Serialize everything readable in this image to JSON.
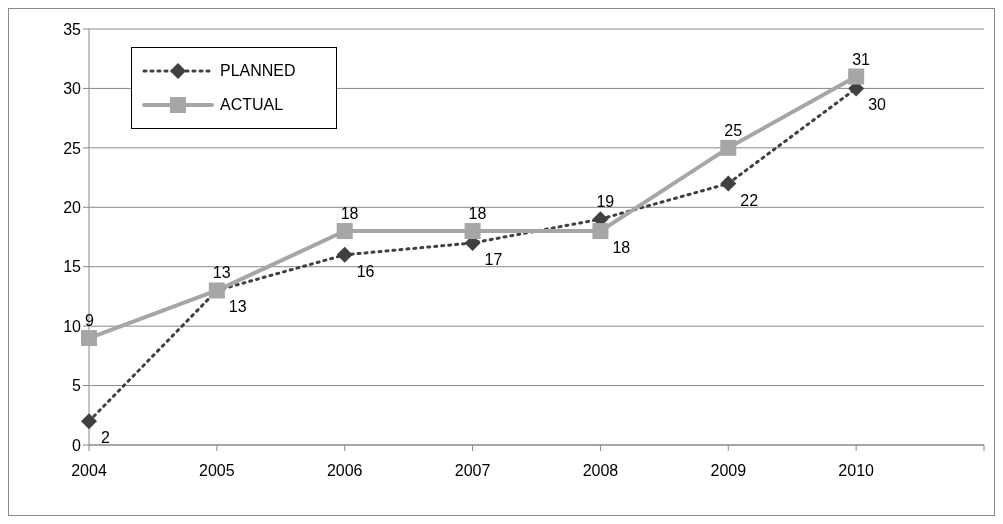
{
  "chart_data": {
    "type": "line",
    "categories": [
      "2004",
      "2005",
      "2006",
      "2007",
      "2008",
      "2009",
      "2010",
      null
    ],
    "series": [
      {
        "name": "PLANNED",
        "color": "#404040",
        "values": [
          2,
          13,
          16,
          17,
          19,
          22,
          30,
          null
        ],
        "marker": "diamond",
        "line_style": "dotted"
      },
      {
        "name": "ACTUAL",
        "color": "#a6a6a6",
        "values": [
          9,
          13,
          18,
          18,
          18,
          25,
          31,
          null
        ],
        "marker": "square",
        "line_style": "solid"
      }
    ],
    "ylim": [
      0,
      35
    ],
    "yticks": [
      0,
      5,
      10,
      15,
      20,
      25,
      30,
      35
    ],
    "grid": "y",
    "legend": "top left",
    "data_labels": true
  }
}
